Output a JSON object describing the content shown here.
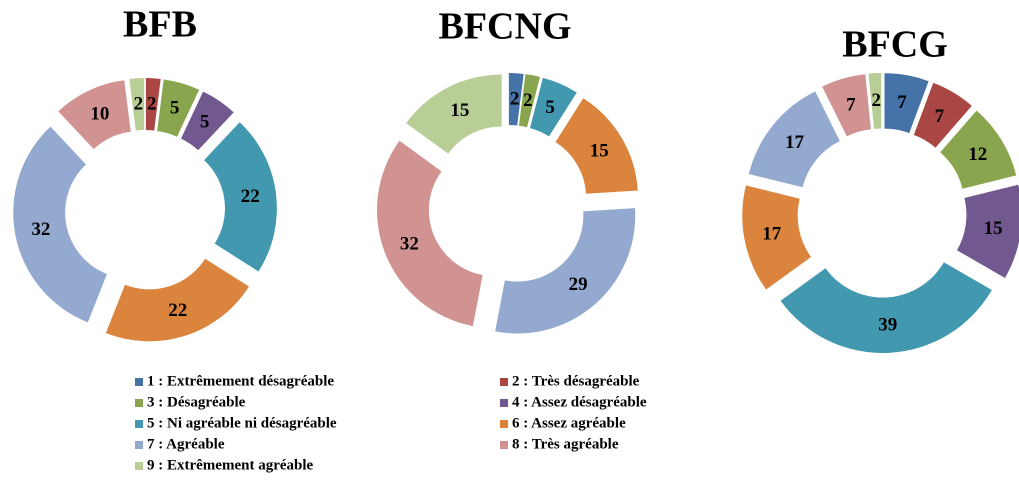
{
  "chart_data": [
    {
      "type": "pie",
      "title": "BFB",
      "values": [
        0,
        2,
        5,
        5,
        22,
        22,
        32,
        10,
        2
      ]
    },
    {
      "type": "pie",
      "title": "BFCNG",
      "values": [
        2,
        0,
        2,
        0,
        5,
        15,
        29,
        32,
        15
      ]
    },
    {
      "type": "pie",
      "title": "BFCG",
      "values": [
        7,
        7,
        12,
        15,
        39,
        17,
        17,
        7,
        2
      ]
    }
  ],
  "legend": {
    "items": [
      {
        "name": "1 : Extrêmement désagréable",
        "color": "#4572a7"
      },
      {
        "name": "2 : Très désagréable",
        "color": "#aa4643"
      },
      {
        "name": "3 : Désagréable",
        "color": "#89a54e"
      },
      {
        "name": "4 : Assez désagréable",
        "color": "#71588f"
      },
      {
        "name": "5 : Ni agréable ni désagréable",
        "color": "#4198af"
      },
      {
        "name": "6 : Assez agréable",
        "color": "#db843d"
      },
      {
        "name": "7 : Agréable",
        "color": "#93a9cf"
      },
      {
        "name": "8 : Très agréable",
        "color": "#d19392"
      },
      {
        "name": "9 : Extrêmement agréable",
        "color": "#b9cd96"
      }
    ]
  }
}
